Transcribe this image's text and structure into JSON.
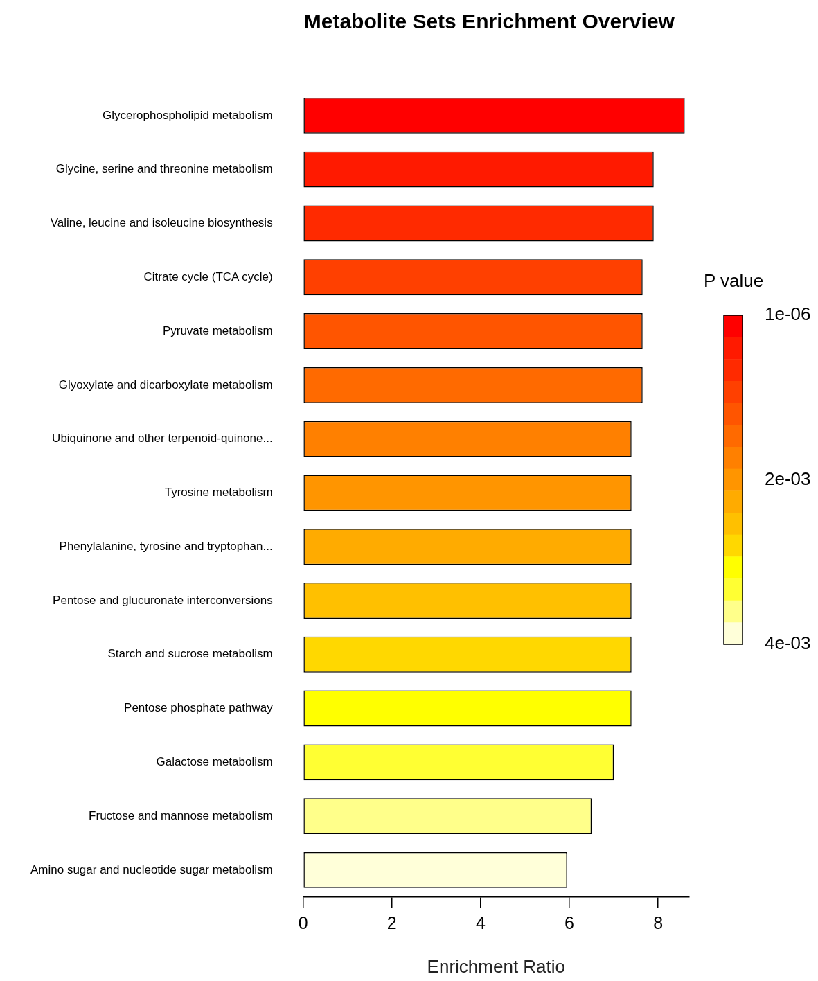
{
  "chart_data": {
    "type": "bar",
    "orientation": "horizontal",
    "title": "Metabolite Sets Enrichment Overview",
    "xlabel": "Enrichment Ratio",
    "clabel": "P value",
    "categories": [
      "Glycerophospholipid metabolism",
      "Glycine, serine and threonine metabolism",
      "Valine, leucine and isoleucine biosynthesis",
      "Citrate cycle (TCA cycle)",
      "Pyruvate metabolism",
      "Glyoxylate and dicarboxylate metabolism",
      "Ubiquinone and other terpenoid-quinone...",
      "Tyrosine metabolism",
      "Phenylalanine, tyrosine and tryptophan...",
      "Pentose and glucuronate interconversions",
      "Starch and sucrose metabolism",
      "Pentose phosphate pathway",
      "Galactose metabolism",
      "Fructose and mannose metabolism",
      "Amino sugar and nucleotide sugar metabolism"
    ],
    "values": [
      8.6,
      7.9,
      7.9,
      7.65,
      7.65,
      7.65,
      7.4,
      7.4,
      7.4,
      7.4,
      7.4,
      7.4,
      7.0,
      6.5,
      5.95
    ],
    "colors": [
      "#ff0000",
      "#ff1a00",
      "#ff2a00",
      "#ff4000",
      "#ff5500",
      "#ff6a00",
      "#ff8000",
      "#ff9500",
      "#ffab00",
      "#ffc000",
      "#ffd800",
      "#ffff00",
      "#ffff33",
      "#ffff8a",
      "#ffffd9"
    ],
    "xlim": [
      0,
      8.7
    ],
    "xticks": [
      0,
      2,
      4,
      6,
      8
    ],
    "clim": [
      1e-06,
      0.004
    ],
    "cticks": [
      {
        "value": 1e-06,
        "label": "1e-06"
      },
      {
        "value": 0.002,
        "label": "2e-03"
      },
      {
        "value": 0.004,
        "label": "4e-03"
      }
    ],
    "grid": false,
    "legend": false
  }
}
